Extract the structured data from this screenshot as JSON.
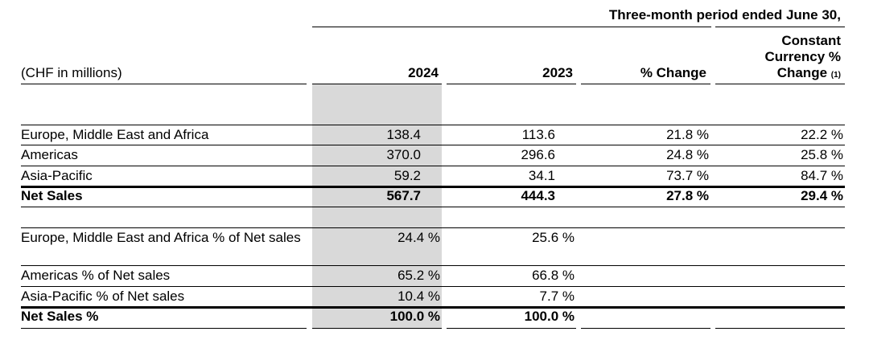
{
  "header": {
    "period": "Three-month period ended June 30,",
    "unit_label": "(CHF in millions)",
    "col_2024": "2024",
    "col_2023": "2023",
    "col_change": "% Change",
    "col_cc_line1": "Constant",
    "col_cc_line2": "Currency %",
    "col_cc_line3": "Change",
    "col_cc_note": "(1)"
  },
  "sales_rows": [
    {
      "label": "Europe, Middle East and Africa",
      "v2024": "138.4",
      "v2023": "113.6",
      "change": "21.8 %",
      "cc_change": "22.2 %"
    },
    {
      "label": "Americas",
      "v2024": "370.0",
      "v2023": "296.6",
      "change": "24.8 %",
      "cc_change": "25.8 %"
    },
    {
      "label": "Asia-Pacific",
      "v2024": "59.2",
      "v2023": "34.1",
      "change": "73.7 %",
      "cc_change": "84.7 %"
    }
  ],
  "sales_total": {
    "label": "Net Sales",
    "v2024": "567.7",
    "v2023": "444.3",
    "change": "27.8 %",
    "cc_change": "29.4 %"
  },
  "pct_rows": [
    {
      "label": "Europe, Middle East and Africa % of Net sales",
      "v2024": "24.4 %",
      "v2023": "25.6 %"
    },
    {
      "label": "Americas % of Net sales",
      "v2024": "65.2 %",
      "v2023": "66.8 %"
    },
    {
      "label": "Asia-Pacific % of Net sales",
      "v2024": "10.4 %",
      "v2023": "7.7 %"
    }
  ],
  "pct_total": {
    "label": "Net Sales %",
    "v2024": "100.0 %",
    "v2023": "100.0 %"
  }
}
